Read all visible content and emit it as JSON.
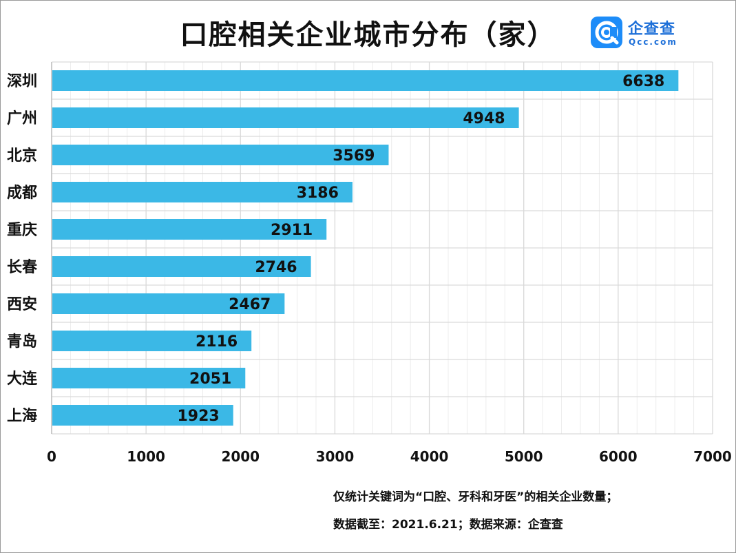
{
  "chart_data": {
    "type": "bar",
    "orientation": "horizontal",
    "title": "口腔相关企业城市分布（家）",
    "categories": [
      "深圳",
      "广州",
      "北京",
      "成都",
      "重庆",
      "长春",
      "西安",
      "青岛",
      "大连",
      "上海"
    ],
    "values": [
      6638,
      4948,
      3569,
      3186,
      2911,
      2746,
      2467,
      2116,
      2051,
      1923
    ],
    "xlim": [
      0,
      7000
    ],
    "xticks": [
      "0",
      "1000",
      "2000",
      "3000",
      "4000",
      "5000",
      "6000",
      "7000"
    ],
    "grid": true,
    "bar_color": "#3bb8e6",
    "grid_color": "#d9d9d9"
  },
  "logo": {
    "name": "企查查",
    "domain": "Qcc.com",
    "color": "#1d8cf8"
  },
  "notes": {
    "line1": "仅统计关键词为“口腔、牙科和牙医”的相关企业数量；",
    "line2": "数据截至：2021.6.21；数据来源：企查查"
  }
}
